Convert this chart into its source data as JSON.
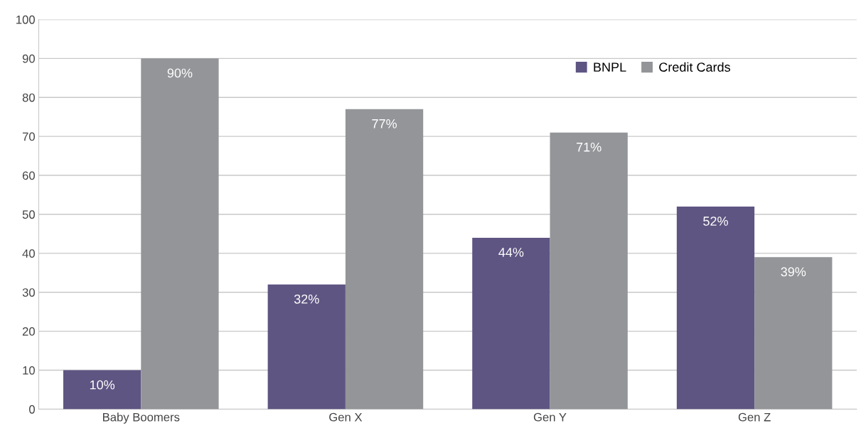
{
  "chart_data": {
    "type": "bar",
    "categories": [
      "Baby Boomers",
      "Gen X",
      "Gen Y",
      "Gen Z"
    ],
    "series": [
      {
        "name": "BNPL",
        "color": "#5f5582",
        "values": [
          10,
          32,
          44,
          52
        ],
        "value_labels": [
          "10%",
          "32%",
          "44%",
          "52%"
        ]
      },
      {
        "name": "Credit Cards",
        "color": "#939598",
        "values": [
          90,
          77,
          71,
          39
        ],
        "value_labels": [
          "90%",
          "77%",
          "71%",
          "39%"
        ]
      }
    ],
    "ylim": [
      0,
      100
    ],
    "yticks": [
      0,
      10,
      20,
      30,
      40,
      50,
      60,
      70,
      80,
      90,
      100
    ],
    "grid": "y",
    "legend": "top right"
  }
}
